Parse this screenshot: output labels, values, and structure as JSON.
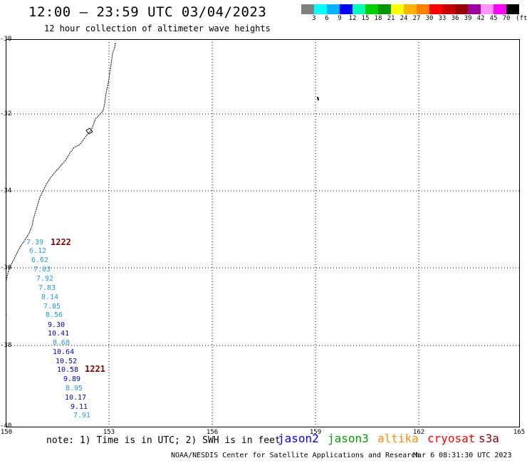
{
  "header": {
    "title": "12:00 — 23:59 UTC 03/04/2023",
    "subtitle": "12 hour collection of altimeter wave heights"
  },
  "legend": {
    "unit": "(ft)",
    "colors": [
      "#808080",
      "#00ffff",
      "#00b4ff",
      "#0000ff",
      "#00ffb4",
      "#00d000",
      "#009600",
      "#ffff00",
      "#ffb400",
      "#ff8000",
      "#ff0000",
      "#c80000",
      "#960000",
      "#a000a0",
      "#ff96ff",
      "#ff00ff",
      "#000000"
    ],
    "labels": [
      "3",
      "6",
      "9",
      "12",
      "15",
      "18",
      "21",
      "24",
      "27",
      "30",
      "33",
      "36",
      "39",
      "42",
      "45",
      "70"
    ]
  },
  "axes": {
    "lat_labels": [
      "-30",
      "-32",
      "-34",
      "-36",
      "-38",
      "-40"
    ],
    "lon_labels": [
      "150",
      "153",
      "156",
      "159",
      "162",
      "165"
    ]
  },
  "passes": [
    {
      "id": "1222",
      "satellite": "cryosat"
    },
    {
      "id": "1221",
      "satellite": "cryosat"
    }
  ],
  "wave_heights": [
    {
      "value": "7.39",
      "color": "#1ea0d8"
    },
    {
      "value": "6.12",
      "color": "#1ea0d8"
    },
    {
      "value": "6.62",
      "color": "#1ea0d8"
    },
    {
      "value": "7.03",
      "color": "#1ea0d8"
    },
    {
      "value": "7.92",
      "color": "#1ea0d8"
    },
    {
      "value": "7.83",
      "color": "#1ea0d8"
    },
    {
      "value": "8.14",
      "color": "#1ea0d8"
    },
    {
      "value": "7.85",
      "color": "#1ea0d8"
    },
    {
      "value": "8.56",
      "color": "#1ea0d8"
    },
    {
      "value": "9.30",
      "color": "#0000c8"
    },
    {
      "value": "10.41",
      "color": "#0000c8"
    },
    {
      "value": "8.68",
      "color": "#1ea0d8"
    },
    {
      "value": "10.64",
      "color": "#0000c8"
    },
    {
      "value": "10.52",
      "color": "#0000c8"
    },
    {
      "value": "10.58",
      "color": "#0000c8"
    },
    {
      "value": "9.89",
      "color": "#0000c8"
    },
    {
      "value": "8.95",
      "color": "#1ea0d8"
    },
    {
      "value": "10.17",
      "color": "#0000c8"
    },
    {
      "value": "9.11",
      "color": "#0000c8"
    },
    {
      "value": "7.91",
      "color": "#1ea0d8"
    }
  ],
  "footer": {
    "note": "note: 1) Time is in UTC; 2) SWH is in feet",
    "satellites": [
      {
        "name": "jason2",
        "color": "#0000ff"
      },
      {
        "name": "jason3",
        "color": "#00a000"
      },
      {
        "name": "altika",
        "color": "#ff8c00"
      },
      {
        "name": "cryosat",
        "color": "#ff0000"
      },
      {
        "name": "s3a",
        "color": "#8b0000"
      }
    ],
    "credit": "NOAA/NESDIS Center for Satellite Applications and Research",
    "timestamp": "Mar  6 08:31:30 UTC 2023"
  }
}
